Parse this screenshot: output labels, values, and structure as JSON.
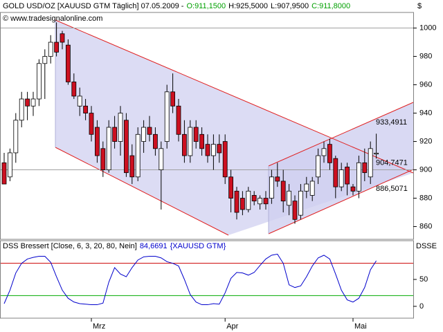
{
  "chart_data": [
    {
      "type": "candlestick",
      "title": "GOLD USD/OZ [XAUUSD GTM  Täglich] 07.05.2009 -",
      "header_values": [
        {
          "text": "O:911,1500",
          "color": "#00a000"
        },
        {
          "text": "H:925,5000",
          "color": "#000000"
        },
        {
          "text": "L:907,9500",
          "color": "#000000"
        },
        {
          "text": "C:911,8000",
          "color": "#00a000"
        }
      ],
      "source": "© www.tradesignalonline.com",
      "currency": "$",
      "categories": [
        null,
        null,
        null,
        null,
        null,
        null,
        null,
        null,
        null,
        null,
        null,
        null,
        null,
        null,
        null,
        "Mrz",
        null,
        null,
        null,
        null,
        null,
        null,
        null,
        null,
        null,
        null,
        null,
        null,
        null,
        null,
        null,
        null,
        null,
        null,
        null,
        null,
        null,
        null,
        "Apr",
        null,
        null,
        null,
        null,
        null,
        null,
        null,
        null,
        null,
        null,
        null,
        null,
        null,
        null,
        null,
        null,
        null,
        null,
        null,
        null,
        null,
        "Mai",
        null,
        null,
        null,
        null
      ],
      "open": [
        905,
        895,
        912,
        935,
        950,
        945,
        950,
        975,
        980,
        990,
        996,
        988,
        962,
        945,
        945,
        940,
        930,
        915,
        900,
        930,
        920,
        935,
        910,
        895,
        920,
        930,
        925,
        900,
        920,
        955,
        945,
        925,
        910,
        930,
        925,
        918,
        910,
        918,
        920,
        895,
        885,
        880,
        872,
        882,
        876,
        880,
        880,
        895,
        892,
        875,
        878,
        868,
        885,
        882,
        895,
        910,
        918,
        908,
        888,
        902,
        888,
        885,
        905,
        895,
        911.15
      ],
      "high": [
        912,
        915,
        940,
        955,
        955,
        955,
        978,
        985,
        995,
        1004,
        998,
        992,
        968,
        958,
        950,
        945,
        935,
        920,
        935,
        938,
        945,
        940,
        918,
        930,
        935,
        938,
        930,
        920,
        960,
        968,
        950,
        935,
        935,
        935,
        930,
        925,
        925,
        925,
        925,
        900,
        888,
        885,
        888,
        885,
        882,
        885,
        900,
        905,
        900,
        890,
        882,
        890,
        895,
        895,
        915,
        920,
        922,
        910,
        905,
        905,
        890,
        910,
        915,
        920,
        925.5
      ],
      "low": [
        890,
        892,
        905,
        930,
        935,
        938,
        945,
        950,
        975,
        980,
        985,
        960,
        950,
        938,
        935,
        920,
        905,
        895,
        898,
        915,
        910,
        895,
        890,
        892,
        912,
        920,
        910,
        872,
        915,
        940,
        920,
        905,
        905,
        915,
        910,
        905,
        900,
        905,
        890,
        870,
        865,
        868,
        870,
        875,
        872,
        872,
        876,
        888,
        870,
        868,
        862,
        865,
        880,
        878,
        890,
        905,
        900,
        880,
        885,
        882,
        882,
        880,
        892,
        890,
        907.95
      ],
      "close": [
        890,
        912,
        935,
        950,
        945,
        950,
        975,
        980,
        990,
        983,
        990,
        962,
        952,
        952,
        940,
        925,
        910,
        900,
        930,
        920,
        940,
        898,
        895,
        925,
        930,
        925,
        915,
        915,
        955,
        945,
        925,
        910,
        930,
        920,
        915,
        910,
        918,
        912,
        895,
        880,
        870,
        872,
        885,
        878,
        880,
        876,
        895,
        892,
        878,
        885,
        865,
        885,
        890,
        892,
        910,
        915,
        905,
        888,
        900,
        890,
        885,
        905,
        898,
        915,
        911.8
      ],
      "up_color": "#ffffff",
      "down_color": "#cc1020",
      "ylim": [
        851,
        1011
      ],
      "yticks": [
        860,
        880,
        900,
        920,
        940,
        960,
        980,
        1000
      ],
      "grid_lines": [
        900,
        1000
      ],
      "annotations": [
        {
          "value": 933.4911,
          "label": "933,4911"
        },
        {
          "value": 904.7471,
          "label": "904,7471"
        },
        {
          "value": 886.5071,
          "label": "886,5071"
        }
      ]
    },
    {
      "type": "line",
      "title": "DSS Bressert [Close, 6, 3, 20, 80, Nein]",
      "last_value": "84,6691",
      "instrument": "{XAUUSD GTM}",
      "axis_label": "DSSE",
      "series": [
        {
          "name": "DSS Bressert",
          "color": "#0000cc",
          "values": [
            5,
            30,
            62,
            80,
            88,
            91,
            93,
            93,
            82,
            55,
            30,
            15,
            8,
            5,
            4,
            3,
            3,
            6,
            45,
            72,
            60,
            55,
            72,
            86,
            92,
            93,
            93,
            90,
            83,
            80,
            75,
            50,
            22,
            8,
            3,
            3,
            5,
            4,
            25,
            52,
            63,
            62,
            58,
            63,
            76,
            88,
            95,
            97,
            80,
            40,
            35,
            38,
            55,
            75,
            90,
            95,
            88,
            60,
            30,
            12,
            8,
            15,
            35,
            68,
            84.6691
          ]
        }
      ],
      "levels": [
        {
          "value": 80,
          "color": "#cc0000"
        },
        {
          "value": 20,
          "color": "#00aa00"
        }
      ],
      "ylim": [
        -22,
        122
      ],
      "yticks": [
        0,
        50
      ]
    }
  ]
}
